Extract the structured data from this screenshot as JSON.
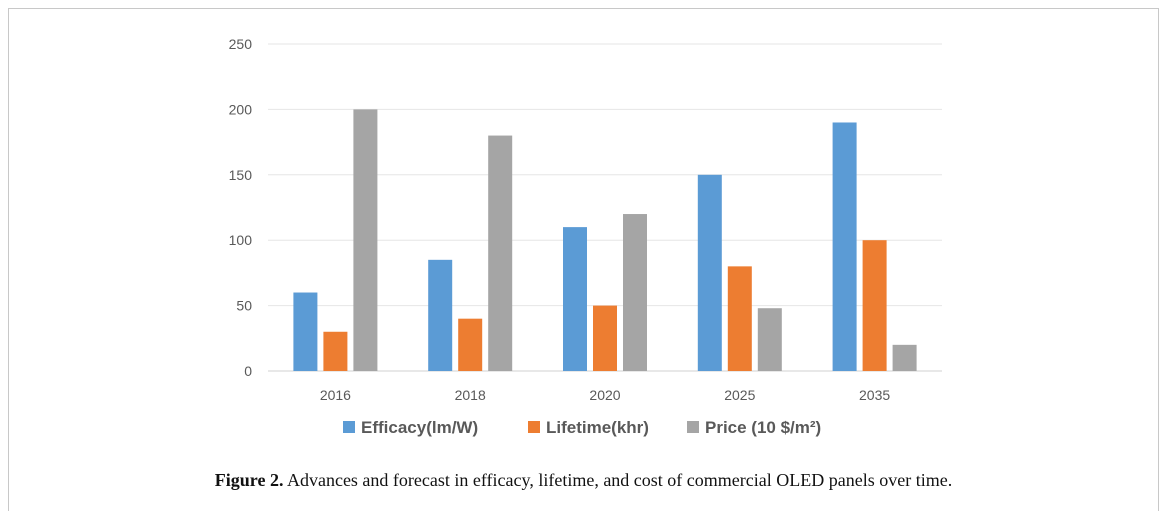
{
  "chart_data": {
    "type": "bar",
    "categories": [
      "2016",
      "2018",
      "2020",
      "2025",
      "2035"
    ],
    "series": [
      {
        "name": "Efficacy(lm/W)",
        "color": "#5b9bd5",
        "values": [
          60,
          85,
          110,
          150,
          190
        ]
      },
      {
        "name": "Lifetime(khr)",
        "color": "#ed7d31",
        "values": [
          30,
          40,
          50,
          80,
          100
        ]
      },
      {
        "name": "Price (10 $/m²)",
        "color": "#a5a5a5",
        "values": [
          200,
          180,
          120,
          48,
          20
        ]
      }
    ],
    "yticks": [
      "0",
      "50",
      "100",
      "150",
      "200",
      "250"
    ],
    "ylim": [
      0,
      250
    ],
    "grid": true,
    "legend_position": "bottom"
  },
  "caption": {
    "label": "Figure 2.",
    "text": " Advances and forecast in efficacy, lifetime, and cost of commercial OLED panels over time."
  }
}
